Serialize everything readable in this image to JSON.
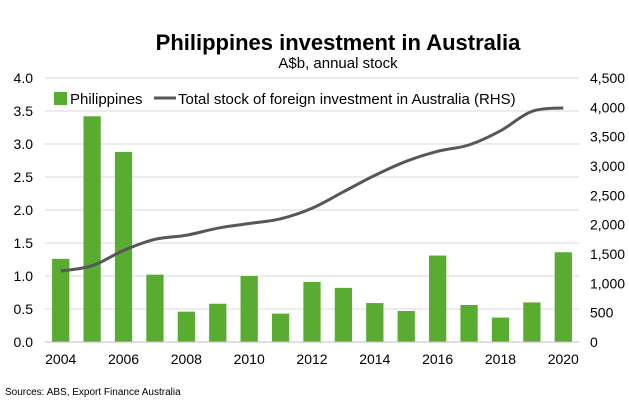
{
  "chart_data": {
    "type": "bar",
    "title": "Philippines investment in Australia",
    "subtitle": "A$b, annual stock",
    "x": [
      2004,
      2005,
      2006,
      2007,
      2008,
      2009,
      2010,
      2011,
      2012,
      2013,
      2014,
      2015,
      2016,
      2017,
      2018,
      2019,
      2020
    ],
    "x_tick_labels": [
      "2004",
      "2006",
      "2008",
      "2010",
      "2012",
      "2014",
      "2016",
      "2018",
      "2020"
    ],
    "series": [
      {
        "name": "Philippines",
        "type": "bar",
        "axis": "left",
        "color": "#5aab32",
        "values": [
          1.26,
          3.42,
          2.88,
          1.02,
          0.46,
          0.58,
          1.0,
          0.43,
          0.91,
          0.82,
          0.59,
          0.47,
          1.31,
          0.56,
          0.37,
          0.6,
          1.36
        ]
      },
      {
        "name": "Total stock of foreign investment in Australia (RHS)",
        "type": "line",
        "axis": "right",
        "color": "#575757",
        "values": [
          1210,
          1300,
          1560,
          1750,
          1820,
          1940,
          2020,
          2100,
          2280,
          2560,
          2840,
          3080,
          3250,
          3360,
          3600,
          3930,
          3990
        ]
      }
    ],
    "y_left": {
      "ylim": [
        0,
        4
      ],
      "ticks": [
        0,
        0.5,
        1,
        1.5,
        2,
        2.5,
        3,
        3.5,
        4
      ],
      "tick_labels": [
        "0.0",
        "0.5",
        "1.0",
        "1.5",
        "2.0",
        "2.5",
        "3.0",
        "3.5",
        "4.0"
      ]
    },
    "y_right": {
      "ylim": [
        0,
        4500
      ],
      "ticks": [
        0,
        500,
        1000,
        1500,
        2000,
        2500,
        3000,
        3500,
        4000,
        4500
      ],
      "tick_labels": [
        "0",
        "500",
        "1,000",
        "1,500",
        "2,000",
        "2,500",
        "3,000",
        "3,500",
        "4,000",
        "4,500"
      ]
    },
    "grid": "horizontal",
    "legend_position": "top-left",
    "source": "Sources: ABS, Export Finance Australia"
  }
}
